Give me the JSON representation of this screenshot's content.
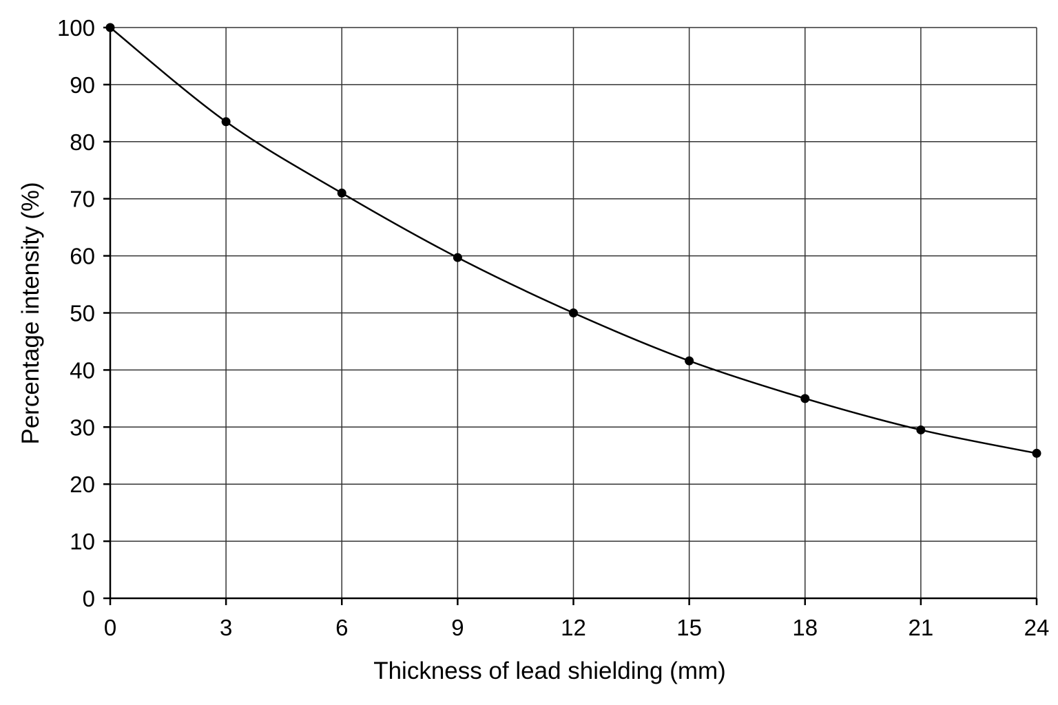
{
  "chart_data": {
    "type": "line",
    "title": "",
    "xlabel": "Thickness of lead shielding (mm)",
    "ylabel": "Percentage intensity (%)",
    "xlim": [
      0,
      24
    ],
    "ylim": [
      0,
      100
    ],
    "x_ticks": [
      "0",
      "3",
      "6",
      "9",
      "12",
      "15",
      "18",
      "21",
      "24"
    ],
    "y_ticks": [
      "0",
      "10",
      "20",
      "30",
      "40",
      "50",
      "60",
      "70",
      "80",
      "90",
      "100"
    ],
    "grid": true,
    "legend": "none",
    "series": [
      {
        "x": [
          0,
          3,
          6,
          9,
          12,
          15,
          18,
          21,
          24
        ],
        "y": [
          100,
          83.5,
          71,
          59.7,
          50,
          41.6,
          35,
          29.5,
          25.4
        ],
        "marker": "filled-circle",
        "line": "smooth-curve"
      }
    ],
    "colors": {
      "line": "#000000",
      "grid": "#333333",
      "background": "#ffffff"
    }
  }
}
